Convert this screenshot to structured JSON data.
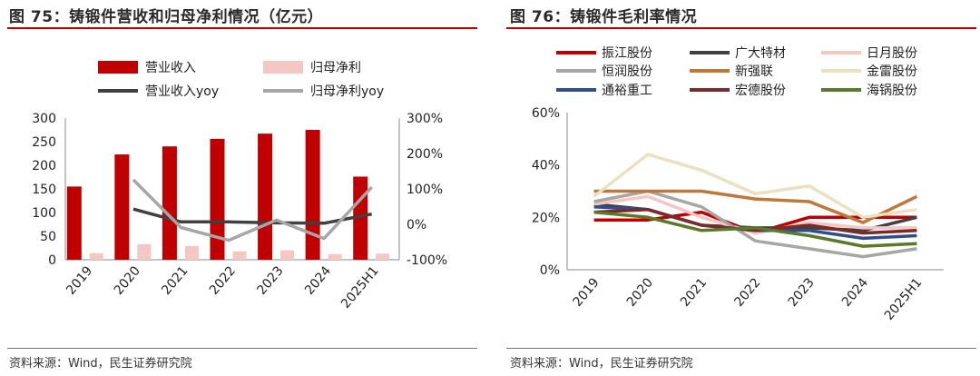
{
  "left": {
    "title": "图 75：铸锻件营收和归母净利情况（亿元）",
    "source": "资料来源：Wind，民生证券研究院",
    "chart_data": {
      "type": "bar",
      "categories": [
        "2019",
        "2020",
        "2021",
        "2022",
        "2023",
        "2024",
        "2025H1"
      ],
      "y_left": {
        "lim": [
          0,
          300
        ],
        "ticks": [
          "0",
          "50",
          "100",
          "150",
          "200",
          "250",
          "300"
        ]
      },
      "y_right": {
        "lim": [
          -100,
          300
        ],
        "ticks": [
          "-100%",
          "0%",
          "100%",
          "200%",
          "300%"
        ]
      },
      "series": [
        {
          "name": "营业收入",
          "kind": "bar",
          "axis": "left",
          "color": "#c00000",
          "values": [
            155,
            223,
            240,
            256,
            267,
            275,
            176
          ]
        },
        {
          "name": "归母净利",
          "kind": "bar",
          "axis": "left",
          "color": "#f4c7c3",
          "values": [
            14,
            33,
            29,
            18,
            20,
            12,
            13
          ]
        },
        {
          "name": "营业收入yoy",
          "kind": "line",
          "axis": "right",
          "color": "#404040",
          "values": [
            null,
            43,
            7,
            7,
            4,
            3,
            29
          ]
        },
        {
          "name": "归母净利yoy",
          "kind": "line",
          "axis": "right",
          "color": "#a6a6a6",
          "values": [
            null,
            126,
            -9,
            -45,
            12,
            -40,
            105
          ]
        }
      ],
      "legend": "top"
    }
  },
  "right": {
    "title": "图 76：铸锻件毛利率情况",
    "source": "资料来源：Wind，民生证券研究院",
    "chart_data": {
      "type": "line",
      "categories": [
        "2019",
        "2020",
        "2021",
        "2022",
        "2023",
        "2024",
        "2025H1"
      ],
      "ylim": [
        0,
        60
      ],
      "yticks": [
        "0%",
        "20%",
        "40%",
        "60%"
      ],
      "series": [
        {
          "name": "振江股份",
          "color": "#c00000",
          "values": [
            19,
            19,
            22,
            14,
            20,
            20,
            20
          ]
        },
        {
          "name": "广大特材",
          "color": "#404040",
          "values": [
            25,
            23,
            17,
            16,
            16,
            15,
            20
          ]
        },
        {
          "name": "日月股份",
          "color": "#f4c7c3",
          "values": [
            25,
            28,
            20,
            14,
            18,
            16,
            16
          ]
        },
        {
          "name": "恒润股份",
          "color": "#a6a6a6",
          "values": [
            26,
            30,
            24,
            11,
            8,
            5,
            8
          ]
        },
        {
          "name": "新强联",
          "color": "#c0773a",
          "values": [
            30,
            30,
            30,
            27,
            26,
            18,
            28
          ]
        },
        {
          "name": "金雷股份",
          "color": "#ede0bf",
          "values": [
            28,
            44,
            38,
            29,
            32,
            20,
            23
          ]
        },
        {
          "name": "通裕重工",
          "color": "#2e4f8a",
          "values": [
            24,
            23,
            17,
            15,
            15,
            12,
            13
          ]
        },
        {
          "name": "宏德股份",
          "color": "#7a2a2a",
          "values": [
            22,
            23,
            17,
            15,
            17,
            14,
            15
          ]
        },
        {
          "name": "海锅股份",
          "color": "#5a7a2a",
          "values": [
            22,
            20,
            15,
            16,
            13,
            9,
            10
          ]
        }
      ],
      "legend": "top"
    }
  }
}
